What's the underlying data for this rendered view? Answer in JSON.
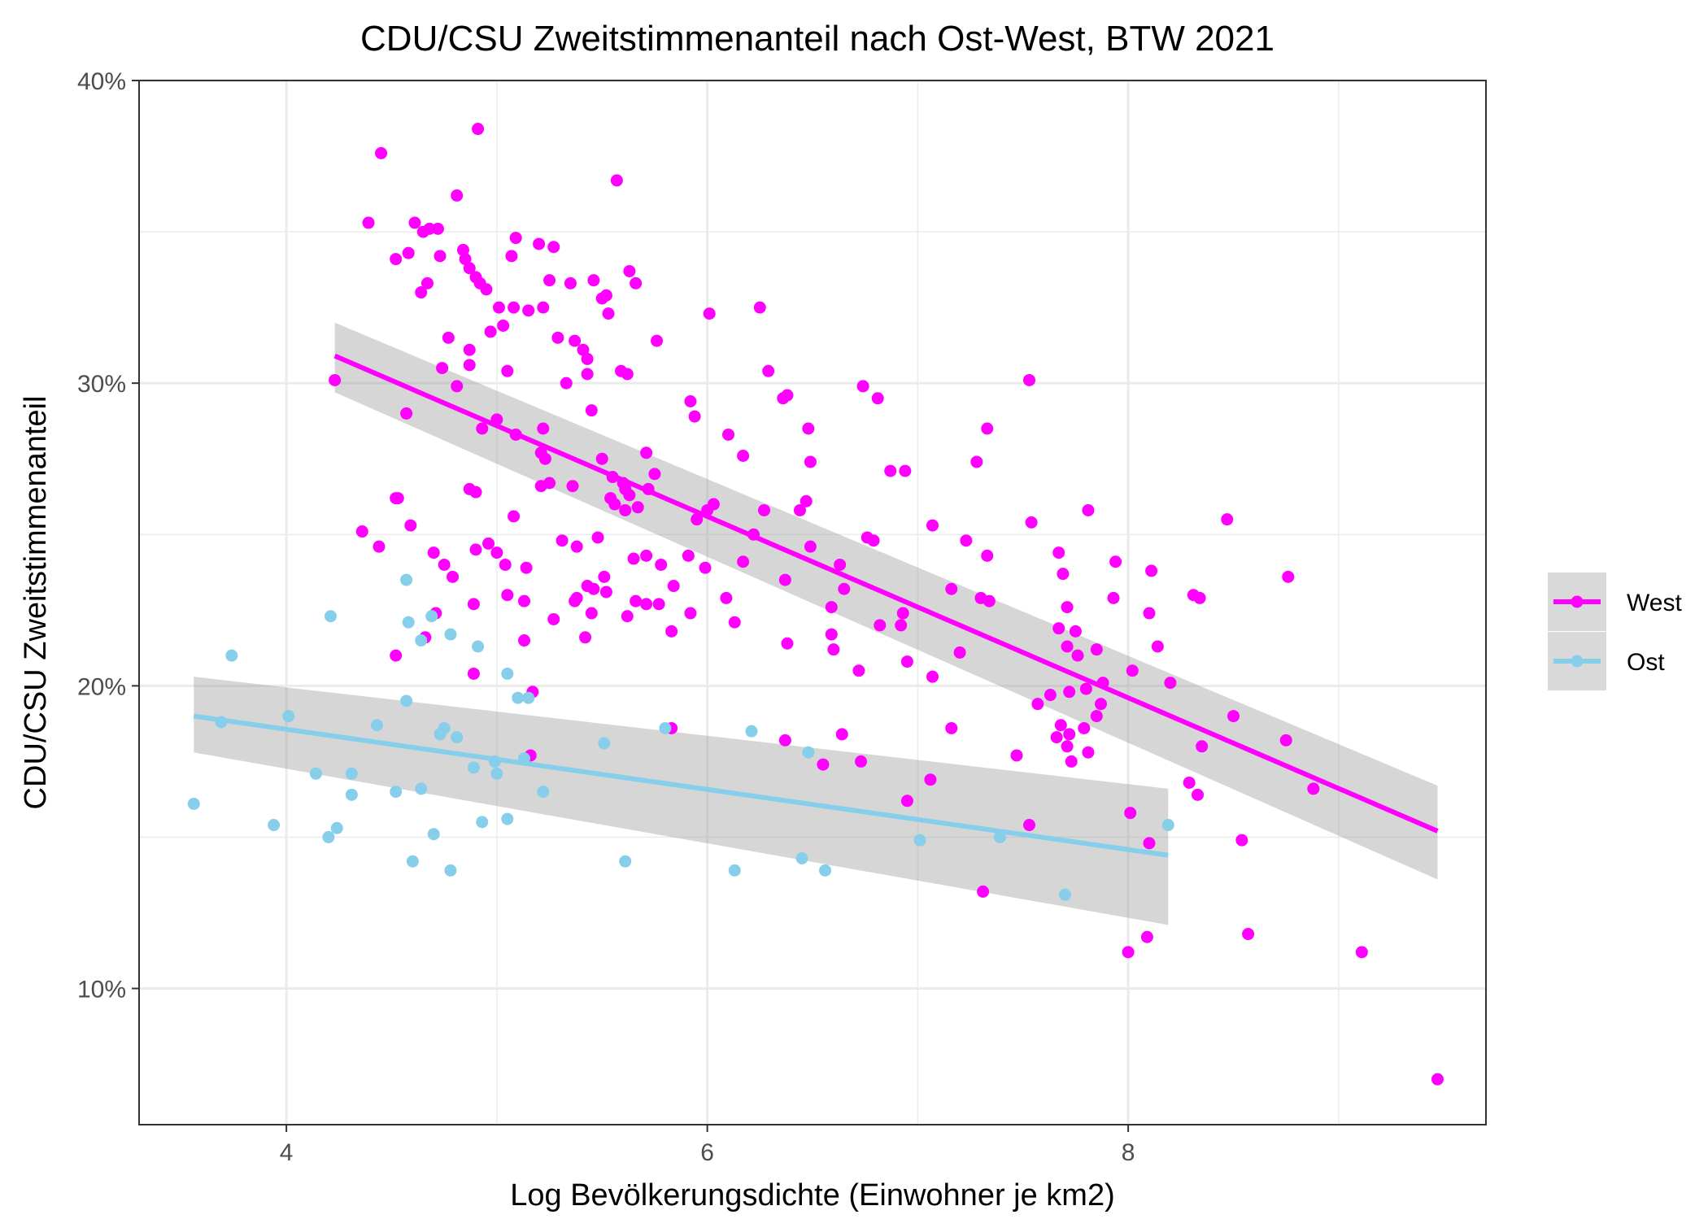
{
  "chart_data": {
    "type": "scatter",
    "title": "CDU/CSU Zweitstimmenanteil nach Ost-West, BTW 2021",
    "xlabel": "Log Bevölkerungsdichte (Einwohner je km2)",
    "ylabel": "CDU/CSU Zweitstimmenanteil",
    "xlim": [
      3.3,
      9.7
    ],
    "ylim": [
      5.5,
      40
    ],
    "x_ticks": [
      4,
      6,
      8
    ],
    "x_tick_labels": [
      "4",
      "6",
      "8"
    ],
    "y_ticks": [
      10,
      20,
      30,
      40
    ],
    "y_tick_labels": [
      "10%",
      "20%",
      "30%",
      "40%"
    ],
    "grid": true,
    "legend_position": "right",
    "series": [
      {
        "name": "West",
        "color": "#FF00FF",
        "points": [
          [
            4.23,
            30.1
          ],
          [
            4.39,
            35.3
          ],
          [
            4.45,
            37.6
          ],
          [
            4.52,
            34.1
          ],
          [
            4.58,
            34.3
          ],
          [
            4.61,
            35.3
          ],
          [
            4.65,
            35.0
          ],
          [
            4.68,
            35.1
          ],
          [
            4.72,
            35.1
          ],
          [
            4.73,
            34.2
          ],
          [
            4.64,
            33.0
          ],
          [
            4.67,
            33.3
          ],
          [
            4.81,
            36.2
          ],
          [
            4.85,
            34.1
          ],
          [
            4.84,
            34.4
          ],
          [
            4.87,
            33.8
          ],
          [
            4.9,
            33.5
          ],
          [
            4.92,
            33.3
          ],
          [
            4.95,
            33.1
          ],
          [
            4.91,
            38.4
          ],
          [
            5.09,
            34.8
          ],
          [
            5.07,
            34.2
          ],
          [
            5.2,
            34.6
          ],
          [
            5.27,
            34.5
          ],
          [
            5.25,
            33.4
          ],
          [
            5.35,
            33.3
          ],
          [
            5.46,
            33.4
          ],
          [
            5.5,
            32.8
          ],
          [
            5.52,
            32.9
          ],
          [
            5.53,
            32.3
          ],
          [
            5.57,
            36.7
          ],
          [
            5.63,
            33.7
          ],
          [
            5.66,
            33.3
          ],
          [
            5.01,
            32.5
          ],
          [
            5.08,
            32.5
          ],
          [
            5.15,
            32.4
          ],
          [
            5.22,
            32.5
          ],
          [
            5.03,
            31.9
          ],
          [
            4.97,
            31.7
          ],
          [
            4.77,
            31.5
          ],
          [
            4.87,
            31.1
          ],
          [
            5.29,
            31.5
          ],
          [
            5.37,
            31.4
          ],
          [
            5.41,
            31.1
          ],
          [
            5.43,
            30.8
          ],
          [
            5.43,
            30.3
          ],
          [
            5.62,
            30.3
          ],
          [
            5.59,
            30.4
          ],
          [
            5.76,
            31.4
          ],
          [
            6.01,
            32.3
          ],
          [
            6.25,
            32.5
          ],
          [
            4.74,
            30.5
          ],
          [
            4.87,
            30.6
          ],
          [
            4.81,
            29.9
          ],
          [
            5.05,
            30.4
          ],
          [
            5.33,
            30.0
          ],
          [
            4.57,
            29.0
          ],
          [
            4.93,
            28.5
          ],
          [
            5.0,
            28.8
          ],
          [
            5.09,
            28.3
          ],
          [
            5.22,
            28.5
          ],
          [
            5.45,
            29.1
          ],
          [
            5.5,
            27.5
          ],
          [
            5.92,
            29.4
          ],
          [
            5.94,
            28.9
          ],
          [
            6.29,
            30.4
          ],
          [
            6.36,
            29.5
          ],
          [
            6.38,
            29.6
          ],
          [
            6.48,
            28.5
          ],
          [
            6.74,
            29.9
          ],
          [
            6.81,
            29.5
          ],
          [
            7.53,
            30.1
          ],
          [
            7.33,
            28.5
          ],
          [
            5.21,
            27.7
          ],
          [
            5.23,
            27.5
          ],
          [
            5.25,
            26.7
          ],
          [
            5.21,
            26.6
          ],
          [
            5.36,
            26.6
          ],
          [
            5.55,
            26.9
          ],
          [
            5.6,
            26.7
          ],
          [
            5.61,
            26.5
          ],
          [
            5.63,
            26.3
          ],
          [
            5.54,
            26.2
          ],
          [
            5.56,
            26.0
          ],
          [
            5.61,
            25.8
          ],
          [
            5.67,
            25.9
          ],
          [
            5.72,
            26.5
          ],
          [
            5.75,
            27.0
          ],
          [
            5.71,
            27.7
          ],
          [
            6.1,
            28.3
          ],
          [
            6.17,
            27.6
          ],
          [
            6.49,
            27.4
          ],
          [
            5.95,
            25.5
          ],
          [
            6.03,
            26.0
          ],
          [
            6.0,
            25.8
          ],
          [
            4.52,
            26.2
          ],
          [
            4.53,
            26.2
          ],
          [
            4.87,
            26.5
          ],
          [
            4.9,
            26.4
          ],
          [
            5.08,
            25.6
          ],
          [
            4.59,
            25.3
          ],
          [
            6.27,
            25.8
          ],
          [
            6.44,
            25.8
          ],
          [
            6.47,
            26.1
          ],
          [
            6.87,
            27.1
          ],
          [
            6.94,
            27.1
          ],
          [
            7.28,
            27.4
          ],
          [
            7.54,
            25.4
          ],
          [
            7.81,
            25.8
          ],
          [
            8.47,
            25.5
          ],
          [
            4.36,
            25.1
          ],
          [
            4.44,
            24.6
          ],
          [
            4.96,
            24.7
          ],
          [
            5.0,
            24.4
          ],
          [
            5.04,
            24.0
          ],
          [
            5.14,
            23.9
          ],
          [
            5.31,
            24.8
          ],
          [
            5.38,
            24.6
          ],
          [
            5.48,
            24.9
          ],
          [
            5.51,
            23.6
          ],
          [
            5.43,
            23.3
          ],
          [
            5.46,
            23.2
          ],
          [
            5.52,
            23.1
          ],
          [
            5.65,
            24.2
          ],
          [
            5.71,
            24.3
          ],
          [
            5.78,
            24.0
          ],
          [
            5.84,
            23.3
          ],
          [
            5.91,
            24.3
          ],
          [
            5.99,
            23.9
          ],
          [
            6.22,
            25.0
          ],
          [
            6.17,
            24.1
          ],
          [
            6.49,
            24.6
          ],
          [
            6.63,
            24.0
          ],
          [
            6.65,
            23.2
          ],
          [
            6.76,
            24.9
          ],
          [
            6.79,
            24.8
          ],
          [
            7.07,
            25.3
          ],
          [
            7.23,
            24.8
          ],
          [
            7.33,
            24.3
          ],
          [
            7.67,
            24.4
          ],
          [
            7.69,
            23.7
          ],
          [
            7.94,
            24.1
          ],
          [
            8.11,
            23.8
          ],
          [
            8.76,
            23.6
          ],
          [
            4.7,
            24.4
          ],
          [
            4.75,
            24.0
          ],
          [
            4.79,
            23.6
          ],
          [
            4.9,
            24.5
          ],
          [
            5.05,
            23.0
          ],
          [
            5.13,
            22.8
          ],
          [
            5.27,
            22.2
          ],
          [
            5.37,
            22.8
          ],
          [
            5.38,
            22.9
          ],
          [
            5.45,
            22.4
          ],
          [
            5.62,
            22.3
          ],
          [
            5.66,
            22.8
          ],
          [
            5.71,
            22.7
          ],
          [
            5.77,
            22.7
          ],
          [
            5.83,
            21.8
          ],
          [
            6.09,
            22.9
          ],
          [
            6.13,
            22.1
          ],
          [
            6.37,
            23.5
          ],
          [
            6.38,
            21.4
          ],
          [
            6.59,
            22.6
          ],
          [
            6.59,
            21.7
          ],
          [
            6.6,
            21.2
          ],
          [
            6.82,
            22.0
          ],
          [
            6.92,
            22.0
          ],
          [
            6.93,
            22.4
          ],
          [
            7.16,
            23.2
          ],
          [
            7.3,
            22.9
          ],
          [
            7.34,
            22.8
          ],
          [
            7.71,
            22.6
          ],
          [
            7.67,
            21.9
          ],
          [
            7.75,
            21.8
          ],
          [
            7.71,
            21.3
          ],
          [
            7.76,
            21.0
          ],
          [
            7.85,
            21.2
          ],
          [
            7.93,
            22.9
          ],
          [
            8.1,
            22.4
          ],
          [
            8.14,
            21.3
          ],
          [
            8.31,
            23.0
          ],
          [
            8.34,
            22.9
          ],
          [
            4.66,
            21.6
          ],
          [
            4.71,
            22.4
          ],
          [
            4.89,
            22.7
          ],
          [
            5.13,
            21.5
          ],
          [
            5.42,
            21.6
          ],
          [
            5.92,
            22.4
          ],
          [
            4.52,
            21.0
          ],
          [
            4.89,
            20.4
          ],
          [
            5.17,
            19.8
          ],
          [
            6.72,
            20.5
          ],
          [
            6.95,
            20.8
          ],
          [
            7.07,
            20.3
          ],
          [
            7.2,
            21.1
          ],
          [
            8.02,
            20.5
          ],
          [
            8.2,
            20.1
          ],
          [
            7.57,
            19.4
          ],
          [
            7.63,
            19.7
          ],
          [
            7.72,
            19.8
          ],
          [
            7.8,
            19.9
          ],
          [
            7.88,
            20.1
          ],
          [
            7.87,
            19.4
          ],
          [
            7.85,
            19.0
          ],
          [
            7.68,
            18.7
          ],
          [
            7.66,
            18.3
          ],
          [
            7.72,
            18.4
          ],
          [
            7.79,
            18.6
          ],
          [
            7.71,
            18.0
          ],
          [
            7.73,
            17.5
          ],
          [
            7.81,
            17.8
          ],
          [
            5.83,
            18.6
          ],
          [
            6.37,
            18.2
          ],
          [
            6.64,
            18.4
          ],
          [
            6.55,
            17.4
          ],
          [
            6.73,
            17.5
          ],
          [
            7.16,
            18.6
          ],
          [
            7.47,
            17.7
          ],
          [
            8.35,
            18.0
          ],
          [
            8.5,
            19.0
          ],
          [
            8.75,
            18.2
          ],
          [
            5.16,
            17.7
          ],
          [
            6.95,
            16.2
          ],
          [
            7.06,
            16.9
          ],
          [
            8.29,
            16.8
          ],
          [
            8.33,
            16.4
          ],
          [
            8.88,
            16.6
          ],
          [
            7.53,
            15.4
          ],
          [
            8.01,
            15.8
          ],
          [
            8.1,
            14.8
          ],
          [
            8.54,
            14.9
          ],
          [
            7.31,
            13.2
          ],
          [
            8.0,
            11.2
          ],
          [
            8.09,
            11.7
          ],
          [
            8.57,
            11.8
          ],
          [
            9.11,
            11.2
          ],
          [
            9.47,
            7.0
          ]
        ],
        "fit": {
          "x": [
            4.23,
            9.47
          ],
          "y": [
            30.9,
            15.2
          ],
          "lower": [
            29.7,
            13.6
          ],
          "upper": [
            32.0,
            16.7
          ]
        }
      },
      {
        "name": "Ost",
        "color": "#87CEEB",
        "points": [
          [
            3.56,
            16.1
          ],
          [
            3.69,
            18.8
          ],
          [
            3.74,
            21.0
          ],
          [
            3.94,
            15.4
          ],
          [
            4.01,
            19.0
          ],
          [
            4.14,
            17.1
          ],
          [
            4.2,
            15.0
          ],
          [
            4.24,
            15.3
          ],
          [
            4.21,
            22.3
          ],
          [
            4.31,
            16.4
          ],
          [
            4.31,
            17.1
          ],
          [
            4.43,
            18.7
          ],
          [
            4.52,
            16.5
          ],
          [
            4.57,
            23.5
          ],
          [
            4.58,
            22.1
          ],
          [
            4.57,
            19.5
          ],
          [
            4.6,
            14.2
          ],
          [
            4.64,
            16.6
          ],
          [
            4.64,
            21.5
          ],
          [
            4.69,
            22.3
          ],
          [
            4.7,
            15.1
          ],
          [
            4.73,
            18.4
          ],
          [
            4.75,
            18.6
          ],
          [
            4.78,
            21.7
          ],
          [
            4.81,
            18.3
          ],
          [
            4.78,
            13.9
          ],
          [
            4.89,
            17.3
          ],
          [
            4.91,
            21.3
          ],
          [
            4.93,
            15.5
          ],
          [
            4.99,
            17.5
          ],
          [
            5.0,
            17.1
          ],
          [
            5.05,
            15.6
          ],
          [
            5.05,
            20.4
          ],
          [
            5.1,
            19.6
          ],
          [
            5.13,
            17.6
          ],
          [
            5.15,
            19.6
          ],
          [
            5.22,
            16.5
          ],
          [
            5.51,
            18.1
          ],
          [
            5.61,
            14.2
          ],
          [
            5.8,
            18.6
          ],
          [
            6.13,
            13.9
          ],
          [
            6.21,
            18.5
          ],
          [
            6.45,
            14.3
          ],
          [
            6.48,
            17.8
          ],
          [
            6.56,
            13.9
          ],
          [
            7.01,
            14.9
          ],
          [
            7.39,
            15.0
          ],
          [
            7.7,
            13.1
          ],
          [
            8.19,
            15.4
          ]
        ],
        "fit": {
          "x": [
            3.56,
            8.19
          ],
          "y": [
            19.0,
            14.4
          ],
          "lower": [
            17.8,
            12.1
          ],
          "upper": [
            20.3,
            16.6
          ]
        }
      }
    ]
  }
}
